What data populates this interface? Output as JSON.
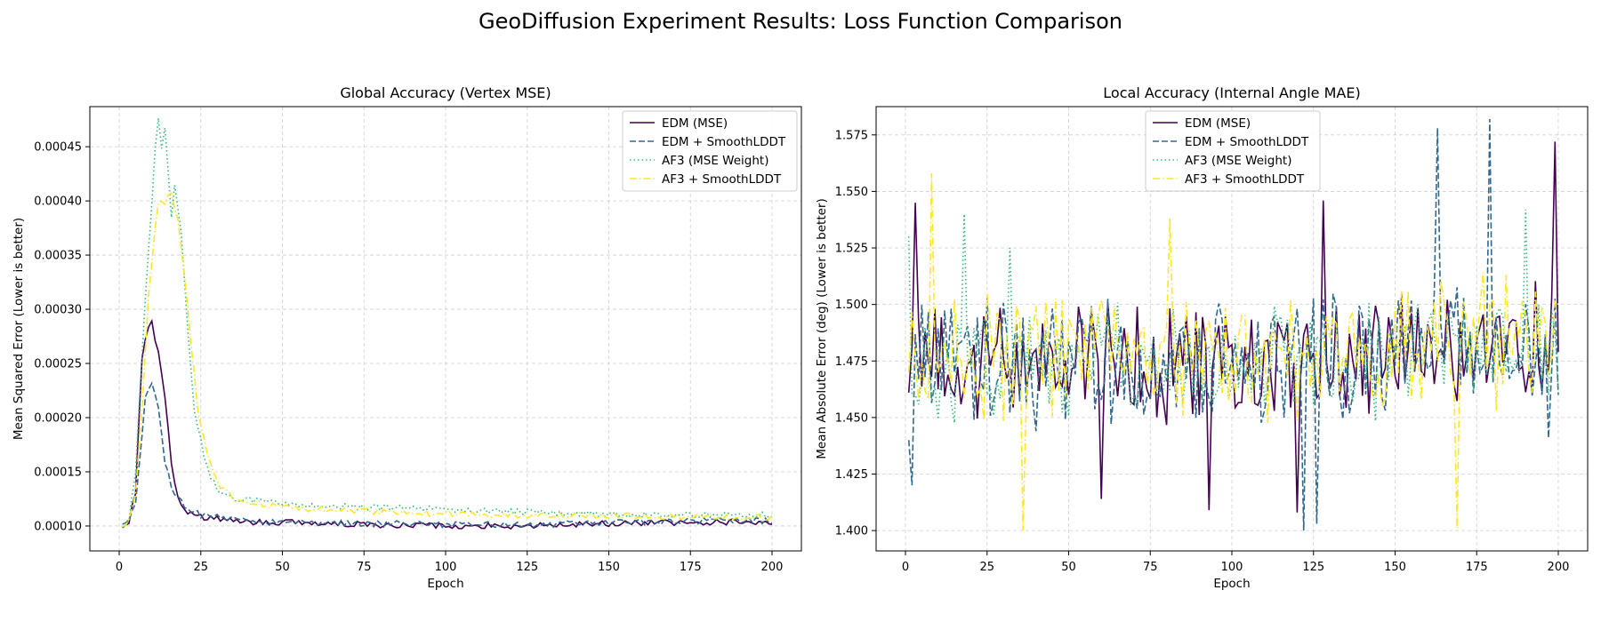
{
  "figure": {
    "suptitle": "GeoDiffusion Experiment Results: Loss Function Comparison",
    "background": "#ffffff",
    "grid_color": "#b0b0b0"
  },
  "chart_data": [
    {
      "type": "line",
      "title": "Global Accuracy (Vertex MSE)",
      "xlabel": "Epoch",
      "ylabel": "Mean Squared Error (Lower is better)",
      "xlim": [
        -9,
        209
      ],
      "ylim": [
        7.7e-05,
        0.000487
      ],
      "xticks": [
        0,
        25,
        50,
        75,
        100,
        125,
        150,
        175,
        200
      ],
      "yticks": [
        0.0001,
        0.00015,
        0.0002,
        0.00025,
        0.0003,
        0.00035,
        0.0004,
        0.00045
      ],
      "ytick_labels": [
        "0.00010",
        "0.00015",
        "0.00020",
        "0.00025",
        "0.00030",
        "0.00035",
        "0.00040",
        "0.00045"
      ],
      "grid": true,
      "legend_position": "top-right",
      "series": [
        {
          "name": "EDM (MSE)",
          "color": "#440154",
          "dash": "solid",
          "keypoints": [
            [
              1,
              0.0001
            ],
            [
              3,
              0.000105
            ],
            [
              5,
              0.00013
            ],
            [
              7,
              0.000255
            ],
            [
              9,
              0.000285
            ],
            [
              10,
              0.000287
            ],
            [
              12,
              0.00026
            ],
            [
              14,
              0.00022
            ],
            [
              16,
              0.00016
            ],
            [
              18,
              0.000125
            ],
            [
              20,
              0.000115
            ],
            [
              25,
              0.000108
            ],
            [
              40,
              0.000104
            ],
            [
              80,
              0.000101
            ],
            [
              120,
              0.0001
            ],
            [
              160,
              0.000103
            ],
            [
              200,
              0.000104
            ]
          ],
          "noise": 2.8e-06
        },
        {
          "name": "EDM + SmoothLDDT",
          "color": "#31688e",
          "dash": "dashed",
          "keypoints": [
            [
              1,
              0.0001
            ],
            [
              3,
              0.000103
            ],
            [
              5,
              0.00012
            ],
            [
              7,
              0.000185
            ],
            [
              8,
              0.000218
            ],
            [
              10,
              0.000232
            ],
            [
              12,
              0.00021
            ],
            [
              14,
              0.00016
            ],
            [
              16,
              0.000135
            ],
            [
              18,
              0.000125
            ],
            [
              20,
              0.000118
            ],
            [
              25,
              0.00011
            ],
            [
              40,
              0.000104
            ],
            [
              80,
              0.000102
            ],
            [
              120,
              0.000101
            ],
            [
              160,
              0.000104
            ],
            [
              200,
              0.000105
            ]
          ],
          "noise": 3e-06
        },
        {
          "name": "AF3 (MSE Weight)",
          "color": "#35b779",
          "dash": "dotted",
          "keypoints": [
            [
              1,
              0.0001
            ],
            [
              3,
              0.000108
            ],
            [
              5,
              0.00015
            ],
            [
              7,
              0.00026
            ],
            [
              9,
              0.000355
            ],
            [
              11,
              0.000445
            ],
            [
              12,
              0.000477
            ],
            [
              13,
              0.00045
            ],
            [
              14,
              0.000465
            ],
            [
              16,
              0.000385
            ],
            [
              17,
              0.000412
            ],
            [
              19,
              0.00037
            ],
            [
              21,
              0.00028
            ],
            [
              23,
              0.000205
            ],
            [
              26,
              0.000165
            ],
            [
              28,
              0.000145
            ],
            [
              30,
              0.000135
            ],
            [
              35,
              0.000125
            ],
            [
              50,
              0.00012
            ],
            [
              80,
              0.000117
            ],
            [
              120,
              0.000113
            ],
            [
              160,
              0.00011
            ],
            [
              200,
              0.00011
            ]
          ],
          "noise": 3e-06
        },
        {
          "name": "AF3 + SmoothLDDT",
          "color": "#fde725",
          "dash": "dashdot",
          "keypoints": [
            [
              1,
              0.0001
            ],
            [
              3,
              0.000106
            ],
            [
              5,
              0.00013
            ],
            [
              7,
              0.00021
            ],
            [
              9,
              0.00031
            ],
            [
              11,
              0.000375
            ],
            [
              12,
              0.0004
            ],
            [
              14,
              0.000398
            ],
            [
              16,
              0.000408
            ],
            [
              18,
              0.00038
            ],
            [
              20,
              0.00033
            ],
            [
              22,
              0.00027
            ],
            [
              24,
              0.00021
            ],
            [
              26,
              0.00018
            ],
            [
              28,
              0.000158
            ],
            [
              30,
              0.00014
            ],
            [
              35,
              0.000125
            ],
            [
              50,
              0.000117
            ],
            [
              80,
              0.000113
            ],
            [
              120,
              0.00011
            ],
            [
              160,
              0.000109
            ],
            [
              200,
              0.000108
            ]
          ],
          "noise": 2.8e-06
        }
      ]
    },
    {
      "type": "line",
      "title": "Local Accuracy (Internal Angle MAE)",
      "xlabel": "Epoch",
      "ylabel": "Mean Absolute Error (deg) (Lower is better)",
      "xlim": [
        -9,
        209
      ],
      "ylim": [
        1.391,
        1.5875
      ],
      "xticks": [
        0,
        25,
        50,
        75,
        100,
        125,
        150,
        175,
        200
      ],
      "yticks": [
        1.4,
        1.425,
        1.45,
        1.475,
        1.5,
        1.525,
        1.55,
        1.575
      ],
      "ytick_labels": [
        "1.400",
        "1.425",
        "1.450",
        "1.475",
        "1.500",
        "1.525",
        "1.550",
        "1.575"
      ],
      "grid": true,
      "legend_position": "top-center",
      "series": [
        {
          "name": "EDM (MSE)",
          "color": "#440154",
          "dash": "solid",
          "keypoints": [
            [
              1,
              1.461
            ],
            [
              3,
              1.545
            ],
            [
              200,
              1.479
            ]
          ],
          "base": 1.475,
          "amp": 0.024,
          "spikes": [
            [
              3,
              1.545
            ],
            [
              60,
              1.414
            ],
            [
              93,
              1.409
            ],
            [
              120,
              1.408
            ],
            [
              128,
              1.546
            ],
            [
              199,
              1.572
            ]
          ]
        },
        {
          "name": "EDM + SmoothLDDT",
          "color": "#31688e",
          "dash": "dashed",
          "keypoints": [
            [
              1,
              1.44
            ],
            [
              200,
              1.46
            ]
          ],
          "base": 1.476,
          "amp": 0.026,
          "spikes": [
            [
              2,
              1.42
            ],
            [
              122,
              1.4
            ],
            [
              126,
              1.403
            ],
            [
              163,
              1.578
            ],
            [
              179,
              1.582
            ],
            [
              197,
              1.441
            ]
          ]
        },
        {
          "name": "AF3 (MSE Weight)",
          "color": "#35b779",
          "dash": "dotted",
          "keypoints": [
            [
              1,
              1.53
            ],
            [
              200,
              1.46
            ]
          ],
          "base": 1.474,
          "amp": 0.022,
          "spikes": [
            [
              18,
              1.54
            ],
            [
              32,
              1.525
            ],
            [
              190,
              1.542
            ]
          ]
        },
        {
          "name": "AF3 + SmoothLDDT",
          "color": "#fde725",
          "dash": "dashdot",
          "keypoints": [
            [
              1,
              1.47
            ],
            [
              200,
              1.5
            ]
          ],
          "base": 1.476,
          "amp": 0.024,
          "spikes": [
            [
              8,
              1.558
            ],
            [
              36,
              1.4
            ],
            [
              81,
              1.538
            ],
            [
              169,
              1.401
            ],
            [
              181,
              1.453
            ]
          ]
        }
      ]
    }
  ]
}
